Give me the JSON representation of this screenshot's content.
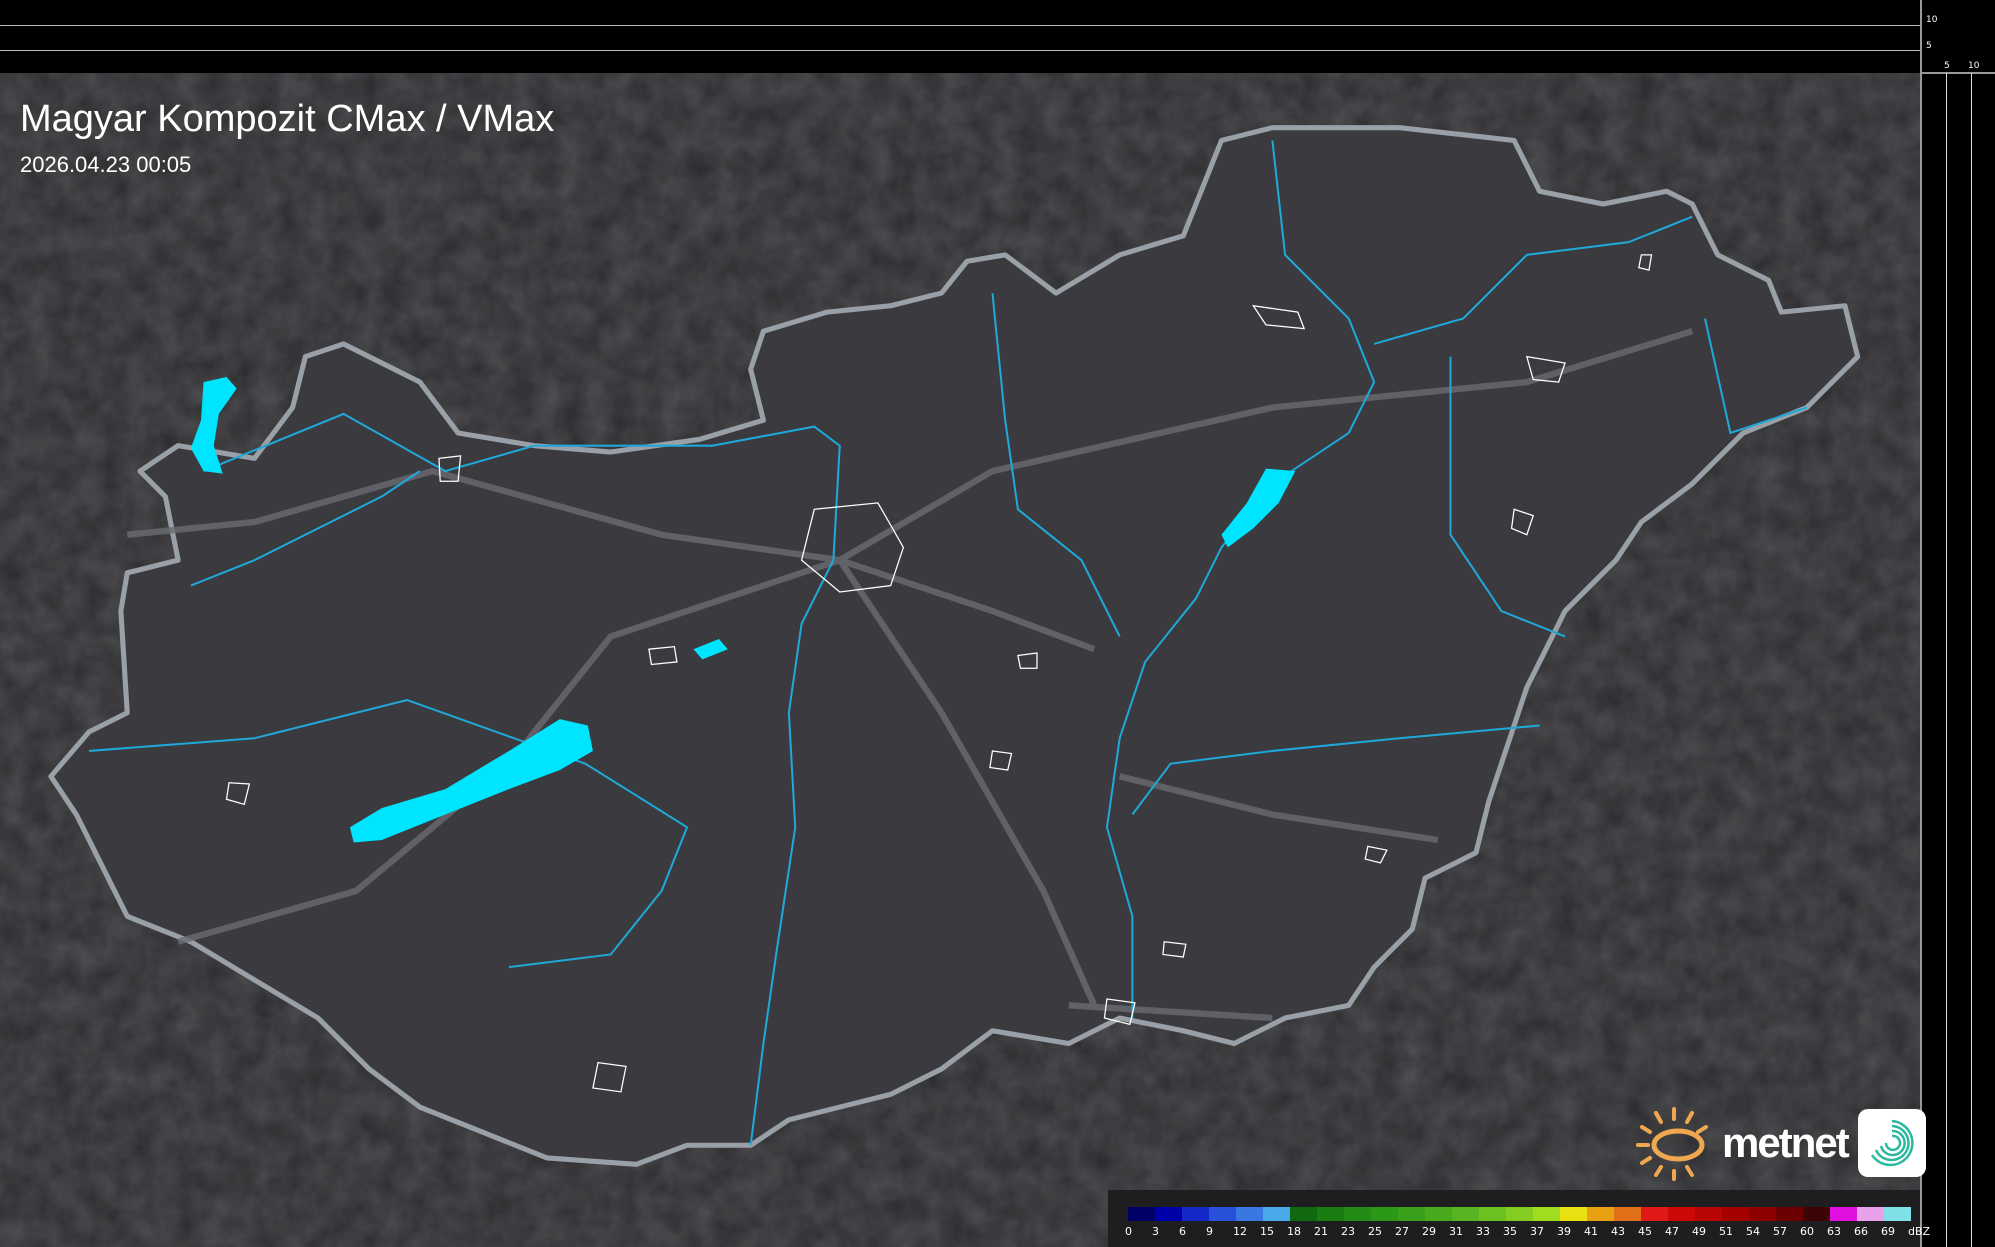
{
  "header": {
    "title": "Magyar Kompozit CMax / VMax",
    "timestamp": "2026.04.23 00:05"
  },
  "scale_ticks": {
    "vertical": [
      "10",
      "5"
    ],
    "horizontal": [
      "5",
      "10"
    ]
  },
  "legend": {
    "unit": "dBZ",
    "labels": [
      "0",
      "3",
      "6",
      "9",
      "12",
      "15",
      "18",
      "21",
      "23",
      "25",
      "27",
      "29",
      "31",
      "33",
      "35",
      "37",
      "39",
      "41",
      "43",
      "45",
      "47",
      "49",
      "51",
      "54",
      "57",
      "60",
      "63",
      "66",
      "69"
    ],
    "colors": [
      "#000068",
      "#0000a8",
      "#1428c8",
      "#2850d8",
      "#3878e0",
      "#48a8e8",
      "#106810",
      "#187c10",
      "#228c14",
      "#2c9818",
      "#38a01a",
      "#48aa1c",
      "#58b420",
      "#6cc020",
      "#84cc22",
      "#a0dc20",
      "#e8e010",
      "#e8a010",
      "#e07018",
      "#e01818",
      "#cc0808",
      "#b80404",
      "#a40000",
      "#8c0000",
      "#6c0000",
      "#3c0404",
      "#e010e0",
      "#e8a0e8",
      "#80e0e8"
    ]
  },
  "logo": {
    "brand": "metnet"
  },
  "colors": {
    "river": "#1fa8d8",
    "lake": "#00e5ff",
    "border": "#9aa0a8",
    "background": "#2a2a2d",
    "country_fill": "#3a3a3f"
  }
}
